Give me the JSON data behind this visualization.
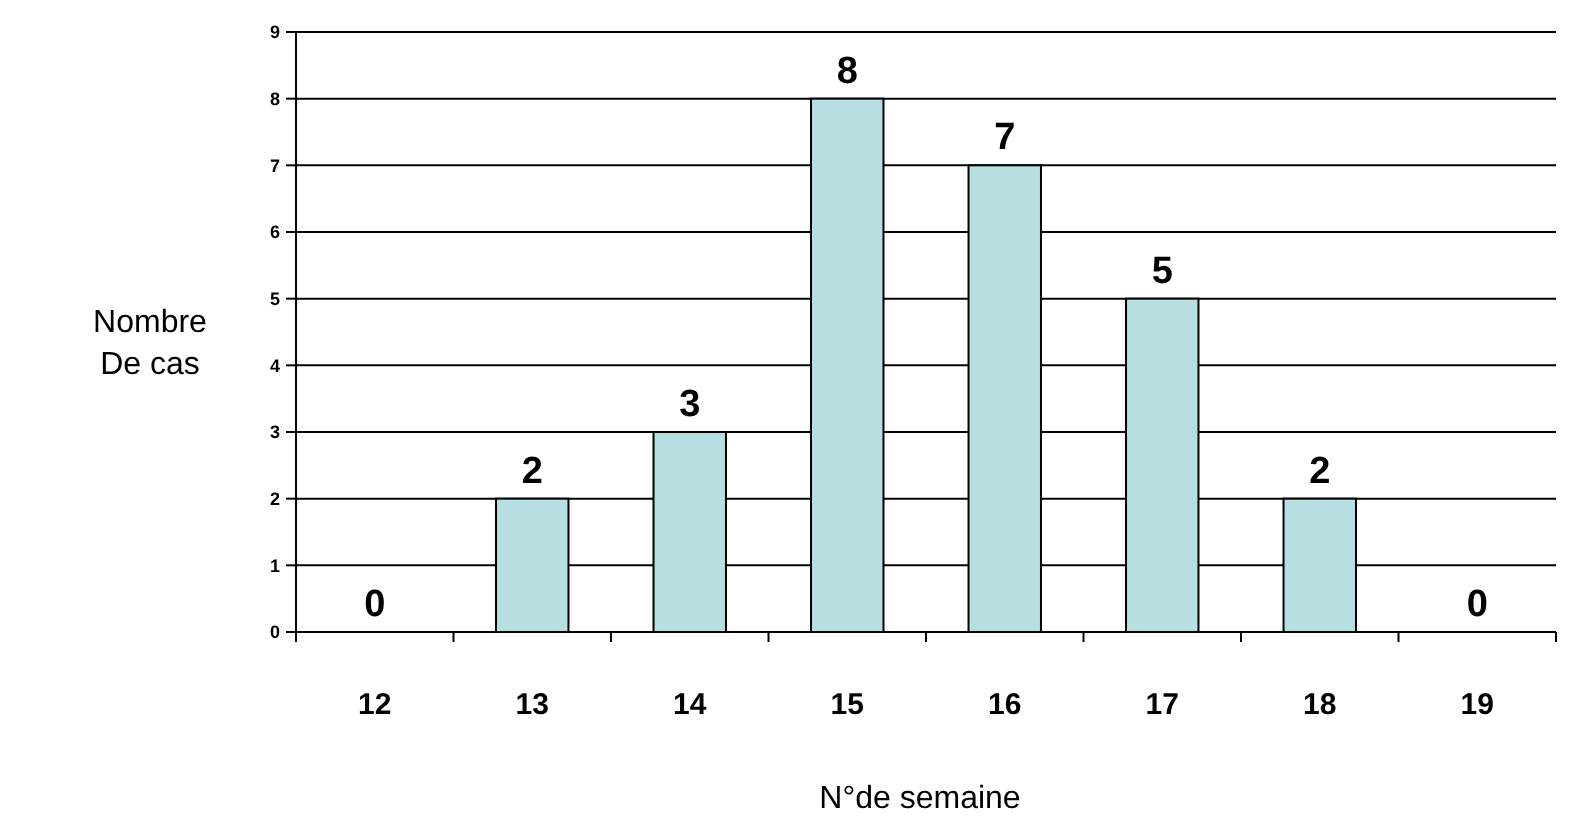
{
  "chart_data": {
    "type": "bar",
    "xlabel": "N°de semaine",
    "ylabel": "Nombre\nDe cas",
    "categories": [
      "12",
      "13",
      "14",
      "15",
      "16",
      "17",
      "18",
      "19"
    ],
    "values": [
      0,
      2,
      3,
      8,
      7,
      5,
      2,
      0
    ],
    "color": "#b7dee0",
    "ylim": [
      0,
      9
    ],
    "yticks": [
      0,
      1,
      2,
      3,
      4,
      5,
      6,
      7,
      8,
      9
    ],
    "grid": "y",
    "data_labels": true
  }
}
